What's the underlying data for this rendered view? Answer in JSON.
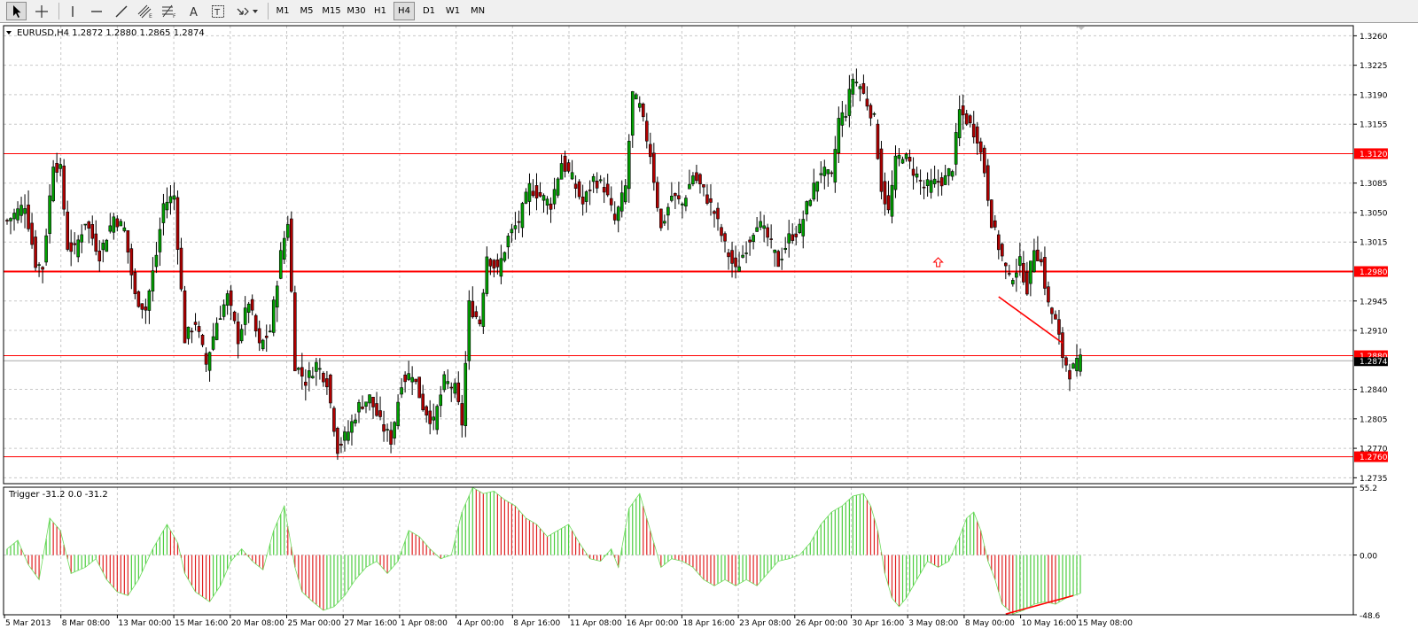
{
  "toolbar": {
    "tools": [
      {
        "name": "cursor-tool",
        "icon": "arrow-cursor-icon",
        "x": 18,
        "selected": true
      },
      {
        "name": "crosshair-tool",
        "icon": "crosshair-icon",
        "x": 47
      },
      {
        "name": "vertical-line-tool",
        "icon": "vertical-line-icon",
        "x": 81
      },
      {
        "name": "horizontal-line-tool",
        "icon": "horizontal-line-icon",
        "x": 109
      },
      {
        "name": "trendline-tool",
        "icon": "trendline-icon",
        "x": 137
      },
      {
        "name": "equidistant-channel-tool",
        "icon": "channel-icon",
        "x": 164
      },
      {
        "name": "fibonacci-tool",
        "icon": "fibonacci-icon",
        "x": 191
      },
      {
        "name": "text-tool",
        "icon": "text-a-icon",
        "x": 219
      },
      {
        "name": "text-label-tool",
        "icon": "text-label-icon",
        "x": 246
      },
      {
        "name": "arrows-tool",
        "icon": "arrows-dropdown-icon",
        "x": 278
      }
    ],
    "timeframes": [
      "M1",
      "M5",
      "M15",
      "M30",
      "H1",
      "H4",
      "D1",
      "W1",
      "MN"
    ],
    "active_timeframe": "H4"
  },
  "colors": {
    "bull": "#00a000",
    "bear": "#b00000",
    "osc_up": "#4ccd3f",
    "osc_down": "#e02020",
    "level": "#ff0000",
    "grid": "#c8c8c8"
  },
  "chart_data": [
    {
      "type": "candlestick",
      "title": "EURUSD,H4  1.2872 1.2880 1.2865 1.2874",
      "symbol": "EURUSD",
      "timeframe": "H4",
      "last_ohlc": [
        1.2872,
        1.288,
        1.2865,
        1.2874
      ],
      "ylim": [
        1.2728,
        1.3272
      ],
      "y_ticks": [
        "1.3260",
        "1.3225",
        "1.3190",
        "1.3155",
        "1.3085",
        "1.3050",
        "1.3015",
        "1.2945",
        "1.2910",
        "1.2840",
        "1.2805",
        "1.2770",
        "1.2735"
      ],
      "x_ticks": [
        "5 Mar 2013",
        "8 Mar 08:00",
        "13 Mar 00:00",
        "15 Mar 16:00",
        "20 Mar 08:00",
        "25 Mar 00:00",
        "27 Mar 16:00",
        "1 Apr 08:00",
        "4 Apr 00:00",
        "8 Apr 16:00",
        "11 Apr 08:00",
        "16 Apr 00:00",
        "18 Apr 16:00",
        "23 Apr 08:00",
        "26 Apr 00:00",
        "30 Apr 16:00",
        "3 May 08:00",
        "8 May 00:00",
        "10 May 16:00",
        "15 May 08:00"
      ],
      "horizontal_levels": [
        {
          "price": 1.312,
          "label": "1.3120",
          "width": 1
        },
        {
          "price": 1.298,
          "label": "1.2980",
          "width": 2
        },
        {
          "price": 1.288,
          "label": "1.2880",
          "width": 1
        },
        {
          "price": 1.276,
          "label": "1.2760",
          "width": 1
        }
      ],
      "current_price": {
        "price": 1.2874,
        "label": "1.2874"
      },
      "trendline": {
        "from": {
          "bar": 279,
          "price": 1.295
        },
        "to": {
          "bar": 297,
          "price": 1.2895
        }
      },
      "arrow_marker": {
        "bar": 262,
        "price": 1.299
      },
      "close_anchors": [
        [
          0,
          1.304
        ],
        [
          5,
          1.306
        ],
        [
          8,
          1.299
        ],
        [
          10,
          1.2985
        ],
        [
          13,
          1.311
        ],
        [
          15,
          1.31
        ],
        [
          17,
          1.301
        ],
        [
          19,
          1.3005
        ],
        [
          22,
          1.304
        ],
        [
          26,
          1.3
        ],
        [
          30,
          1.3045
        ],
        [
          33,
          1.303
        ],
        [
          36,
          1.295
        ],
        [
          39,
          1.2935
        ],
        [
          42,
          1.3
        ],
        [
          44,
          1.306
        ],
        [
          47,
          1.307
        ],
        [
          50,
          1.29
        ],
        [
          53,
          1.292
        ],
        [
          56,
          1.287
        ],
        [
          59,
          1.292
        ],
        [
          62,
          1.295
        ],
        [
          65,
          1.29
        ],
        [
          68,
          1.2945
        ],
        [
          71,
          1.289
        ],
        [
          74,
          1.291
        ],
        [
          77,
          1.3
        ],
        [
          79,
          1.304
        ],
        [
          81,
          1.287
        ],
        [
          84,
          1.285
        ],
        [
          87,
          1.287
        ],
        [
          90,
          1.285
        ],
        [
          93,
          1.277
        ],
        [
          96,
          1.279
        ],
        [
          99,
          1.282
        ],
        [
          102,
          1.283
        ],
        [
          105,
          1.28
        ],
        [
          108,
          1.278
        ],
        [
          111,
          1.285
        ],
        [
          114,
          1.286
        ],
        [
          117,
          1.282
        ],
        [
          120,
          1.28
        ],
        [
          123,
          1.285
        ],
        [
          126,
          1.284
        ],
        [
          128,
          1.28
        ],
        [
          130,
          1.294
        ],
        [
          133,
          1.292
        ],
        [
          135,
          1.3
        ],
        [
          138,
          1.298
        ],
        [
          141,
          1.302
        ],
        [
          144,
          1.304
        ],
        [
          147,
          1.308
        ],
        [
          150,
          1.307
        ],
        [
          153,
          1.306
        ],
        [
          156,
          1.311
        ],
        [
          159,
          1.309
        ],
        [
          162,
          1.306
        ],
        [
          165,
          1.309
        ],
        [
          168,
          1.308
        ],
        [
          171,
          1.304
        ],
        [
          174,
          1.308
        ],
        [
          176,
          1.319
        ],
        [
          178,
          1.3175
        ],
        [
          181,
          1.312
        ],
        [
          184,
          1.303
        ],
        [
          187,
          1.307
        ],
        [
          190,
          1.306
        ],
        [
          193,
          1.3095
        ],
        [
          196,
          1.3075
        ],
        [
          199,
          1.305
        ],
        [
          202,
          1.301
        ],
        [
          205,
          1.298
        ],
        [
          208,
          1.301
        ],
        [
          211,
          1.304
        ],
        [
          214,
          1.302
        ],
        [
          217,
          1.299
        ],
        [
          220,
          1.302
        ],
        [
          223,
          1.303
        ],
        [
          226,
          1.307
        ],
        [
          229,
          1.31
        ],
        [
          232,
          1.309
        ],
        [
          234,
          1.316
        ],
        [
          236,
          1.317
        ],
        [
          238,
          1.321
        ],
        [
          240,
          1.32
        ],
        [
          242,
          1.318
        ],
        [
          244,
          1.316
        ],
        [
          246,
          1.308
        ],
        [
          248,
          1.305
        ],
        [
          250,
          1.311
        ],
        [
          252,
          1.312
        ],
        [
          255,
          1.31
        ],
        [
          258,
          1.308
        ],
        [
          261,
          1.3085
        ],
        [
          264,
          1.309
        ],
        [
          266,
          1.3105
        ],
        [
          268,
          1.317
        ],
        [
          270,
          1.316
        ],
        [
          273,
          1.314
        ],
        [
          275,
          1.31
        ],
        [
          277,
          1.304
        ],
        [
          279,
          1.301
        ],
        [
          282,
          1.297
        ],
        [
          285,
          1.299
        ],
        [
          287,
          1.296
        ],
        [
          289,
          1.301
        ],
        [
          291,
          1.299
        ],
        [
          293,
          1.294
        ],
        [
          295,
          1.292
        ],
        [
          297,
          1.288
        ],
        [
          299,
          1.286
        ],
        [
          302,
          1.2874
        ]
      ]
    },
    {
      "type": "histogram",
      "title": "Trigger -31.2 0.0 -31.2",
      "indicator": "Trigger",
      "values_shown": [
        -31.2,
        0.0,
        -31.2
      ],
      "ylim": [
        -48.6,
        55.2
      ],
      "y_ticks": [
        "55.2",
        "0.00",
        "-48.6"
      ],
      "trendline": {
        "from": {
          "bar": 281,
          "value": -48.0
        },
        "to": {
          "bar": 300,
          "value": -33.0
        }
      },
      "value_anchors": [
        [
          0,
          5
        ],
        [
          3,
          12
        ],
        [
          6,
          -8
        ],
        [
          9,
          -20
        ],
        [
          12,
          30
        ],
        [
          15,
          20
        ],
        [
          18,
          -15
        ],
        [
          22,
          -10
        ],
        [
          25,
          -3
        ],
        [
          28,
          -20
        ],
        [
          31,
          -30
        ],
        [
          34,
          -33
        ],
        [
          37,
          -20
        ],
        [
          41,
          5
        ],
        [
          45,
          25
        ],
        [
          48,
          10
        ],
        [
          50,
          -15
        ],
        [
          53,
          -30
        ],
        [
          57,
          -38
        ],
        [
          60,
          -25
        ],
        [
          63,
          -5
        ],
        [
          66,
          5
        ],
        [
          69,
          -5
        ],
        [
          72,
          -12
        ],
        [
          75,
          20
        ],
        [
          78,
          40
        ],
        [
          81,
          -10
        ],
        [
          83,
          -30
        ],
        [
          86,
          -38
        ],
        [
          89,
          -45
        ],
        [
          92,
          -42
        ],
        [
          95,
          -33
        ],
        [
          98,
          -20
        ],
        [
          101,
          -10
        ],
        [
          104,
          -5
        ],
        [
          107,
          -15
        ],
        [
          110,
          -5
        ],
        [
          113,
          20
        ],
        [
          116,
          15
        ],
        [
          119,
          5
        ],
        [
          122,
          -3
        ],
        [
          125,
          0
        ],
        [
          128,
          35
        ],
        [
          131,
          55
        ],
        [
          134,
          50
        ],
        [
          137,
          52
        ],
        [
          140,
          45
        ],
        [
          143,
          40
        ],
        [
          146,
          30
        ],
        [
          149,
          25
        ],
        [
          152,
          15
        ],
        [
          155,
          20
        ],
        [
          158,
          25
        ],
        [
          161,
          10
        ],
        [
          164,
          -3
        ],
        [
          167,
          -5
        ],
        [
          170,
          5
        ],
        [
          172,
          -10
        ],
        [
          175,
          38
        ],
        [
          178,
          50
        ],
        [
          181,
          20
        ],
        [
          184,
          -10
        ],
        [
          187,
          -3
        ],
        [
          190,
          -5
        ],
        [
          193,
          -10
        ],
        [
          196,
          -20
        ],
        [
          199,
          -25
        ],
        [
          202,
          -20
        ],
        [
          205,
          -25
        ],
        [
          208,
          -20
        ],
        [
          211,
          -25
        ],
        [
          214,
          -15
        ],
        [
          217,
          -5
        ],
        [
          220,
          -3
        ],
        [
          223,
          0
        ],
        [
          226,
          10
        ],
        [
          229,
          25
        ],
        [
          232,
          35
        ],
        [
          235,
          40
        ],
        [
          238,
          48
        ],
        [
          241,
          50
        ],
        [
          243,
          40
        ],
        [
          245,
          20
        ],
        [
          247,
          -15
        ],
        [
          249,
          -35
        ],
        [
          251,
          -42
        ],
        [
          253,
          -35
        ],
        [
          256,
          -20
        ],
        [
          259,
          -5
        ],
        [
          262,
          -10
        ],
        [
          265,
          -5
        ],
        [
          268,
          15
        ],
        [
          270,
          30
        ],
        [
          272,
          35
        ],
        [
          274,
          20
        ],
        [
          276,
          -5
        ],
        [
          278,
          -20
        ],
        [
          280,
          -40
        ],
        [
          283,
          -48
        ],
        [
          286,
          -45
        ],
        [
          289,
          -40
        ],
        [
          292,
          -38
        ],
        [
          295,
          -40
        ],
        [
          298,
          -35
        ],
        [
          302,
          -31.2
        ]
      ]
    }
  ]
}
